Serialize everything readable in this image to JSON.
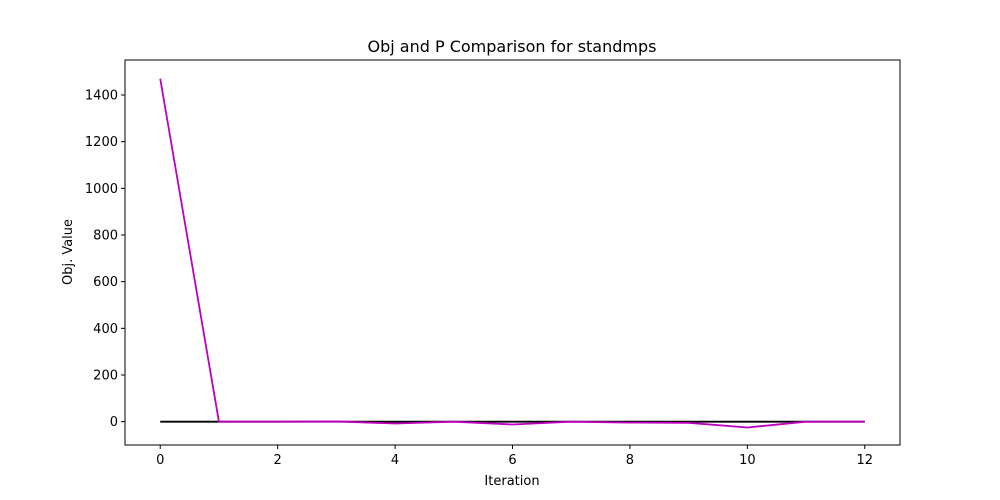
{
  "chart_data": {
    "type": "line",
    "title": "Obj and P Comparison for standmps",
    "xlabel": "Iteration",
    "ylabel": "Obj. Value",
    "xlim": [
      -0.6,
      12.6
    ],
    "ylim": [
      -100,
      1550
    ],
    "xticks": [
      0,
      2,
      4,
      6,
      8,
      10,
      12
    ],
    "yticks": [
      0,
      200,
      400,
      600,
      800,
      1000,
      1200,
      1400
    ],
    "grid": false,
    "legend": "none",
    "x": [
      0,
      1,
      2,
      3,
      4,
      5,
      6,
      7,
      8,
      9,
      10,
      11,
      12
    ],
    "series": [
      {
        "color": "#000000",
        "values": [
          0,
          0,
          0,
          0,
          0,
          0,
          0,
          0,
          0,
          0,
          0,
          0,
          0
        ]
      },
      {
        "color": "#bf00bf",
        "values": [
          1470,
          0,
          0,
          1,
          -8,
          0,
          -12,
          0,
          -4,
          -5,
          -25,
          0,
          0
        ]
      }
    ]
  }
}
